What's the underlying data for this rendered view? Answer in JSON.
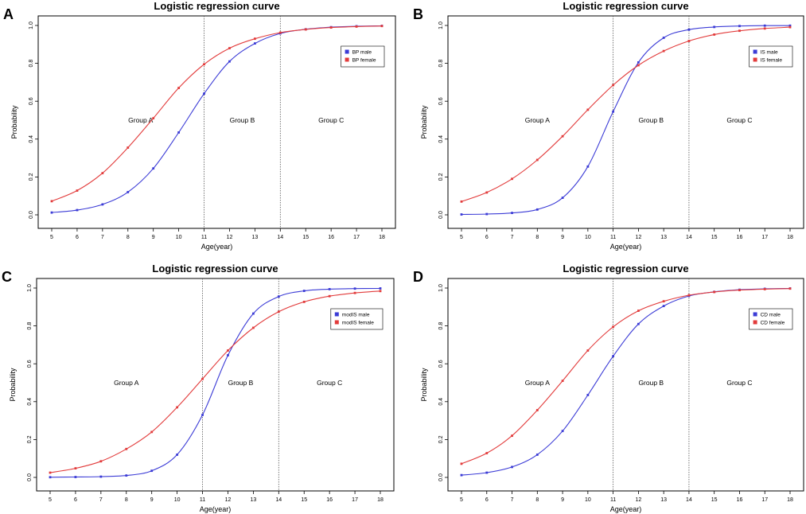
{
  "figure": {
    "panels": [
      "A",
      "B",
      "C",
      "D"
    ],
    "series_colors": {
      "male": "#3b3bd6",
      "female": "#e23b3b"
    }
  },
  "chart_data": [
    {
      "panel": "A",
      "type": "line",
      "title": "Logistic regression curve",
      "xlabel": "Age(year)",
      "ylabel": "Probability",
      "x": [
        5,
        6,
        7,
        8,
        9,
        10,
        11,
        12,
        13,
        14,
        15,
        16,
        17,
        18
      ],
      "xlim": [
        5,
        18
      ],
      "ylim": [
        0,
        1
      ],
      "yticks": [
        "0.0",
        "0.2",
        "0.4",
        "0.6",
        "0.8",
        "1.0"
      ],
      "vlines": [
        11,
        14
      ],
      "groups": [
        {
          "label": "Group A",
          "x": 8.5,
          "y": 0.5
        },
        {
          "label": "Group B",
          "x": 12.5,
          "y": 0.5
        },
        {
          "label": "Group C",
          "x": 16,
          "y": 0.5
        }
      ],
      "legend": "top-right",
      "series": [
        {
          "name": "BP male",
          "color": "#3b3bd6",
          "values": [
            0.012,
            0.025,
            0.055,
            0.12,
            0.245,
            0.435,
            0.64,
            0.81,
            0.905,
            0.958,
            0.98,
            0.991,
            0.996,
            0.998
          ]
        },
        {
          "name": "BP female",
          "color": "#e23b3b",
          "values": [
            0.072,
            0.128,
            0.22,
            0.355,
            0.51,
            0.67,
            0.795,
            0.88,
            0.93,
            0.962,
            0.979,
            0.989,
            0.994,
            0.997
          ]
        }
      ]
    },
    {
      "panel": "B",
      "type": "line",
      "title": "Logistic regression curve",
      "xlabel": "Age(year)",
      "ylabel": "Probability",
      "x": [
        5,
        6,
        7,
        8,
        9,
        10,
        11,
        12,
        13,
        14,
        15,
        16,
        17,
        18
      ],
      "xlim": [
        5,
        18
      ],
      "ylim": [
        0,
        1
      ],
      "yticks": [
        "0.0",
        "0.2",
        "0.4",
        "0.6",
        "0.8",
        "1.0"
      ],
      "vlines": [
        11,
        14
      ],
      "groups": [
        {
          "label": "Group A",
          "x": 8.0,
          "y": 0.5
        },
        {
          "label": "Group B",
          "x": 12.5,
          "y": 0.5
        },
        {
          "label": "Group C",
          "x": 16,
          "y": 0.5
        }
      ],
      "legend": "top-right",
      "series": [
        {
          "name": "IS male",
          "color": "#3b3bd6",
          "values": [
            0.002,
            0.004,
            0.01,
            0.028,
            0.09,
            0.255,
            0.545,
            0.805,
            0.935,
            0.978,
            0.992,
            0.997,
            0.999,
            0.999
          ]
        },
        {
          "name": "IS female",
          "color": "#e23b3b",
          "values": [
            0.07,
            0.118,
            0.19,
            0.29,
            0.415,
            0.555,
            0.685,
            0.79,
            0.865,
            0.918,
            0.952,
            0.972,
            0.984,
            0.991
          ]
        }
      ]
    },
    {
      "panel": "C",
      "type": "line",
      "title": "Logistic regression curve",
      "xlabel": "Age(year)",
      "ylabel": "Probability",
      "x": [
        5,
        6,
        7,
        8,
        9,
        10,
        11,
        12,
        13,
        14,
        15,
        16,
        17,
        18
      ],
      "xlim": [
        5,
        18
      ],
      "ylim": [
        0,
        1
      ],
      "yticks": [
        "0.0",
        "0.2",
        "0.4",
        "0.6",
        "0.8",
        "1.0"
      ],
      "vlines": [
        11,
        14
      ],
      "groups": [
        {
          "label": "Group A",
          "x": 8.0,
          "y": 0.5
        },
        {
          "label": "Group B",
          "x": 12.5,
          "y": 0.5
        },
        {
          "label": "Group C",
          "x": 16,
          "y": 0.5
        }
      ],
      "legend": "top-right",
      "series": [
        {
          "name": "modIS male",
          "color": "#3b3bd6",
          "values": [
            0.001,
            0.002,
            0.004,
            0.01,
            0.035,
            0.12,
            0.33,
            0.645,
            0.865,
            0.955,
            0.985,
            0.994,
            0.997,
            0.998
          ]
        },
        {
          "name": "modIS female",
          "color": "#e23b3b",
          "values": [
            0.025,
            0.048,
            0.085,
            0.15,
            0.24,
            0.37,
            0.52,
            0.67,
            0.79,
            0.875,
            0.927,
            0.957,
            0.974,
            0.984
          ]
        }
      ]
    },
    {
      "panel": "D",
      "type": "line",
      "title": "Logistic regression curve",
      "xlabel": "Age(year)",
      "ylabel": "Probability",
      "x": [
        5,
        6,
        7,
        8,
        9,
        10,
        11,
        12,
        13,
        14,
        15,
        16,
        17,
        18
      ],
      "xlim": [
        5,
        18
      ],
      "ylim": [
        0,
        1
      ],
      "yticks": [
        "0.0",
        "0.2",
        "0.4",
        "0.6",
        "0.8",
        "1.0"
      ],
      "vlines": [
        11,
        14
      ],
      "groups": [
        {
          "label": "Group A",
          "x": 8.0,
          "y": 0.5
        },
        {
          "label": "Group B",
          "x": 12.5,
          "y": 0.5
        },
        {
          "label": "Group C",
          "x": 16,
          "y": 0.5
        }
      ],
      "legend": "top-right",
      "series": [
        {
          "name": "CD male",
          "color": "#3b3bd6",
          "values": [
            0.012,
            0.025,
            0.055,
            0.12,
            0.245,
            0.435,
            0.64,
            0.81,
            0.905,
            0.958,
            0.98,
            0.991,
            0.996,
            0.998
          ]
        },
        {
          "name": "CD female",
          "color": "#e23b3b",
          "values": [
            0.072,
            0.128,
            0.22,
            0.355,
            0.51,
            0.67,
            0.795,
            0.88,
            0.93,
            0.962,
            0.979,
            0.989,
            0.994,
            0.997
          ]
        }
      ]
    }
  ]
}
